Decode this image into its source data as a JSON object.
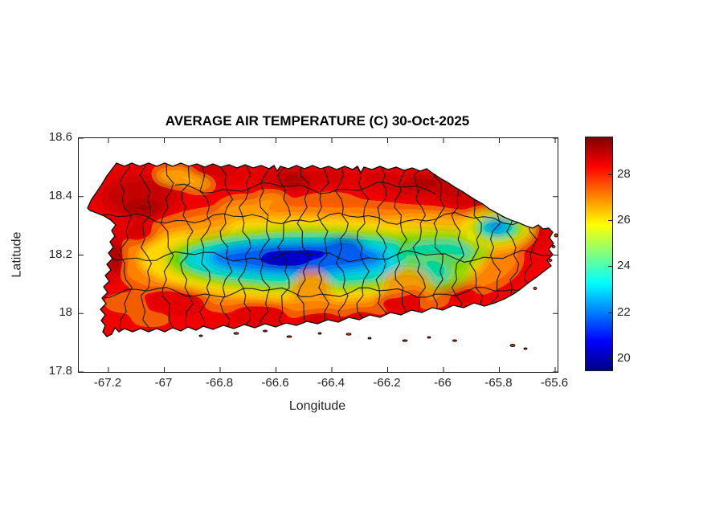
{
  "chart_data": {
    "type": "heatmap",
    "title": "AVERAGE AIR TEMPERATURE (C) 30-Oct-2025",
    "xlabel": "Longitude",
    "ylabel": "Latitude",
    "units": "degrees Celsius",
    "region": "Puerto Rico (filled contour temperature field with municipality boundaries overlaid in black)",
    "x_ticks": [
      "-67.2",
      "-67",
      "-66.8",
      "-66.6",
      "-66.4",
      "-66.2",
      "-66",
      "-65.8",
      "-65.6"
    ],
    "y_ticks": [
      "18.6",
      "18.4",
      "18.2",
      "18",
      "17.8"
    ],
    "x_range": [
      -67.31,
      -65.59
    ],
    "y_range": [
      17.8,
      18.6
    ],
    "legend_position": "right colorbar",
    "grid_lines": "off",
    "colorbar": {
      "colormap": "jet",
      "min": 19.5,
      "max": 29.65,
      "tick_values": [
        28,
        26,
        24,
        22,
        20
      ],
      "tick_labels": [
        "28",
        "26",
        "24",
        "22",
        "20"
      ]
    },
    "grid": {
      "lon": [
        -67.2,
        -67.1,
        -67.0,
        -66.9,
        -66.8,
        -66.7,
        -66.6,
        -66.5,
        -66.4,
        -66.3,
        -66.2,
        -66.1,
        -66.0,
        -65.9,
        -65.8,
        -65.7,
        -65.6
      ],
      "lat": [
        18.5,
        18.4,
        18.3,
        18.2,
        18.1,
        18.0
      ],
      "temperature_c": [
        [
          null,
          27.5,
          28.0,
          27.5,
          27.0,
          27.5,
          28.0,
          28.5,
          28.0,
          28.0,
          28.5,
          28.0,
          28.5,
          null,
          null,
          null,
          null
        ],
        [
          28.0,
          28.5,
          28.5,
          28.0,
          27.0,
          27.5,
          28.5,
          28.0,
          28.5,
          28.0,
          28.0,
          27.5,
          28.0,
          27.5,
          26.5,
          null,
          null
        ],
        [
          28.0,
          28.5,
          28.0,
          27.5,
          26.5,
          26.0,
          26.5,
          27.0,
          27.5,
          27.0,
          26.5,
          26.0,
          25.5,
          24.0,
          22.5,
          27.5,
          null
        ],
        [
          null,
          28.5,
          27.5,
          26.5,
          24.5,
          22.5,
          21.0,
          20.5,
          21.5,
          23.5,
          25.0,
          25.5,
          24.5,
          25.0,
          26.5,
          28.0,
          28.5
        ],
        [
          null,
          28.5,
          28.5,
          27.5,
          26.0,
          24.5,
          22.0,
          21.0,
          22.5,
          24.0,
          24.5,
          25.0,
          24.5,
          26.0,
          27.5,
          28.0,
          null
        ],
        [
          null,
          28.0,
          28.5,
          28.0,
          27.5,
          27.0,
          26.5,
          26.0,
          26.5,
          27.0,
          27.5,
          27.5,
          27.0,
          28.0,
          28.5,
          null,
          null
        ]
      ]
    }
  }
}
